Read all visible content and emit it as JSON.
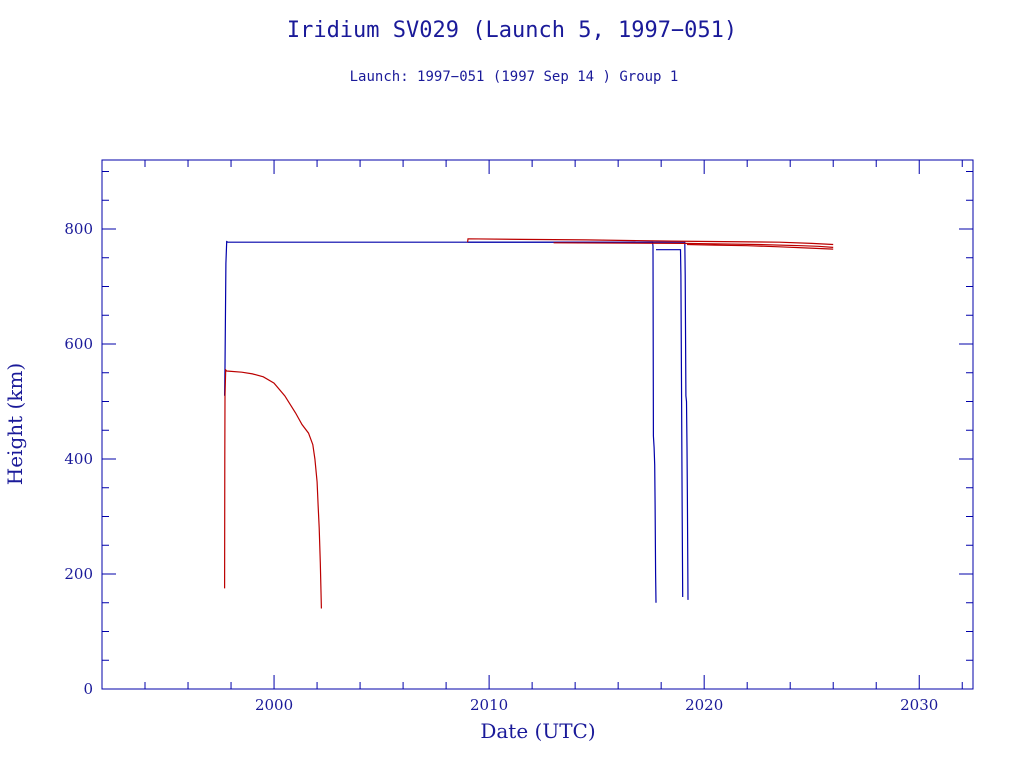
{
  "colors": {
    "axis": "#0000aa",
    "text": "#1a1a99",
    "series_blue": "#0000aa",
    "series_red": "#bb0000"
  },
  "chart_data": {
    "type": "line",
    "title": "Iridium SV029 (Launch 5, 1997−051)",
    "subtitle": "Launch: 1997−051  (1997 Sep 14 )  Group 1",
    "xlabel": "Date (UTC)",
    "ylabel": "Height (km)",
    "xlim": [
      1992,
      2032.5
    ],
    "ylim": [
      0,
      920
    ],
    "xticks": [
      2000,
      2010,
      2020,
      2030
    ],
    "xtick_labels": [
      "2000",
      "2010",
      "2020",
      "2030"
    ],
    "yticks": [
      0,
      200,
      400,
      600,
      800
    ],
    "ytick_labels": [
      "0",
      "200",
      "400",
      "600",
      "800"
    ],
    "grid": false,
    "legend": "none",
    "series": [
      {
        "color": "blue",
        "x": [
          1997.7,
          1997.72,
          1997.74,
          1997.76,
          1997.8,
          1997.85,
          2009.0,
          2017.6,
          2017.62,
          2017.64,
          2017.67,
          2017.7,
          2017.72,
          2017.74,
          2017.76
        ],
        "y": [
          510,
          560,
          640,
          740,
          778,
          777,
          777,
          777,
          770,
          440,
          420,
          390,
          320,
          200,
          150
        ]
      },
      {
        "color": "blue",
        "x": [
          2017.76,
          2018.9,
          2018.92,
          2018.95,
          2018.98,
          2019.0
        ],
        "y": [
          764,
          764,
          720,
          500,
          300,
          160
        ]
      },
      {
        "color": "blue",
        "x": [
          2017.6,
          2019.1,
          2019.12,
          2019.15,
          2019.18,
          2019.2,
          2019.22,
          2019.25
        ],
        "y": [
          777,
          777,
          720,
          510,
          500,
          420,
          330,
          155
        ]
      },
      {
        "color": "blue",
        "x": [
          2009.0,
          2017.6
        ],
        "y": [
          777,
          777
        ]
      },
      {
        "color": "red",
        "x": [
          1997.7,
          1997.71,
          1997.72,
          1997.75,
          1997.8,
          1998.5,
          1999.0,
          1999.5,
          2000.0,
          2000.5,
          2001.0,
          2001.3,
          2001.6,
          2001.8,
          2001.9,
          2002.0,
          2002.05,
          2002.1,
          2002.15,
          2002.2
        ],
        "y": [
          175,
          400,
          510,
          555,
          553,
          551,
          548,
          543,
          532,
          510,
          480,
          460,
          445,
          425,
          400,
          360,
          320,
          280,
          220,
          140
        ]
      },
      {
        "color": "red",
        "x": [
          2009.0,
          2009.02,
          2011.5,
          2014.5,
          2018.5,
          2023.5,
          2025.0,
          2026.0
        ],
        "y": [
          777,
          783,
          782,
          781,
          779,
          777,
          775,
          773
        ]
      },
      {
        "color": "red",
        "x": [
          2013.0,
          2019.0,
          2020.5,
          2022.5,
          2024.5,
          2025.3,
          2026.0
        ],
        "y": [
          776,
          775,
          774,
          773,
          771,
          770,
          768
        ]
      },
      {
        "color": "red",
        "x": [
          2019.2,
          2020.5,
          2022.0,
          2023.5,
          2024.8,
          2026.0
        ],
        "y": [
          773,
          772,
          771,
          769,
          767,
          765
        ]
      }
    ]
  }
}
